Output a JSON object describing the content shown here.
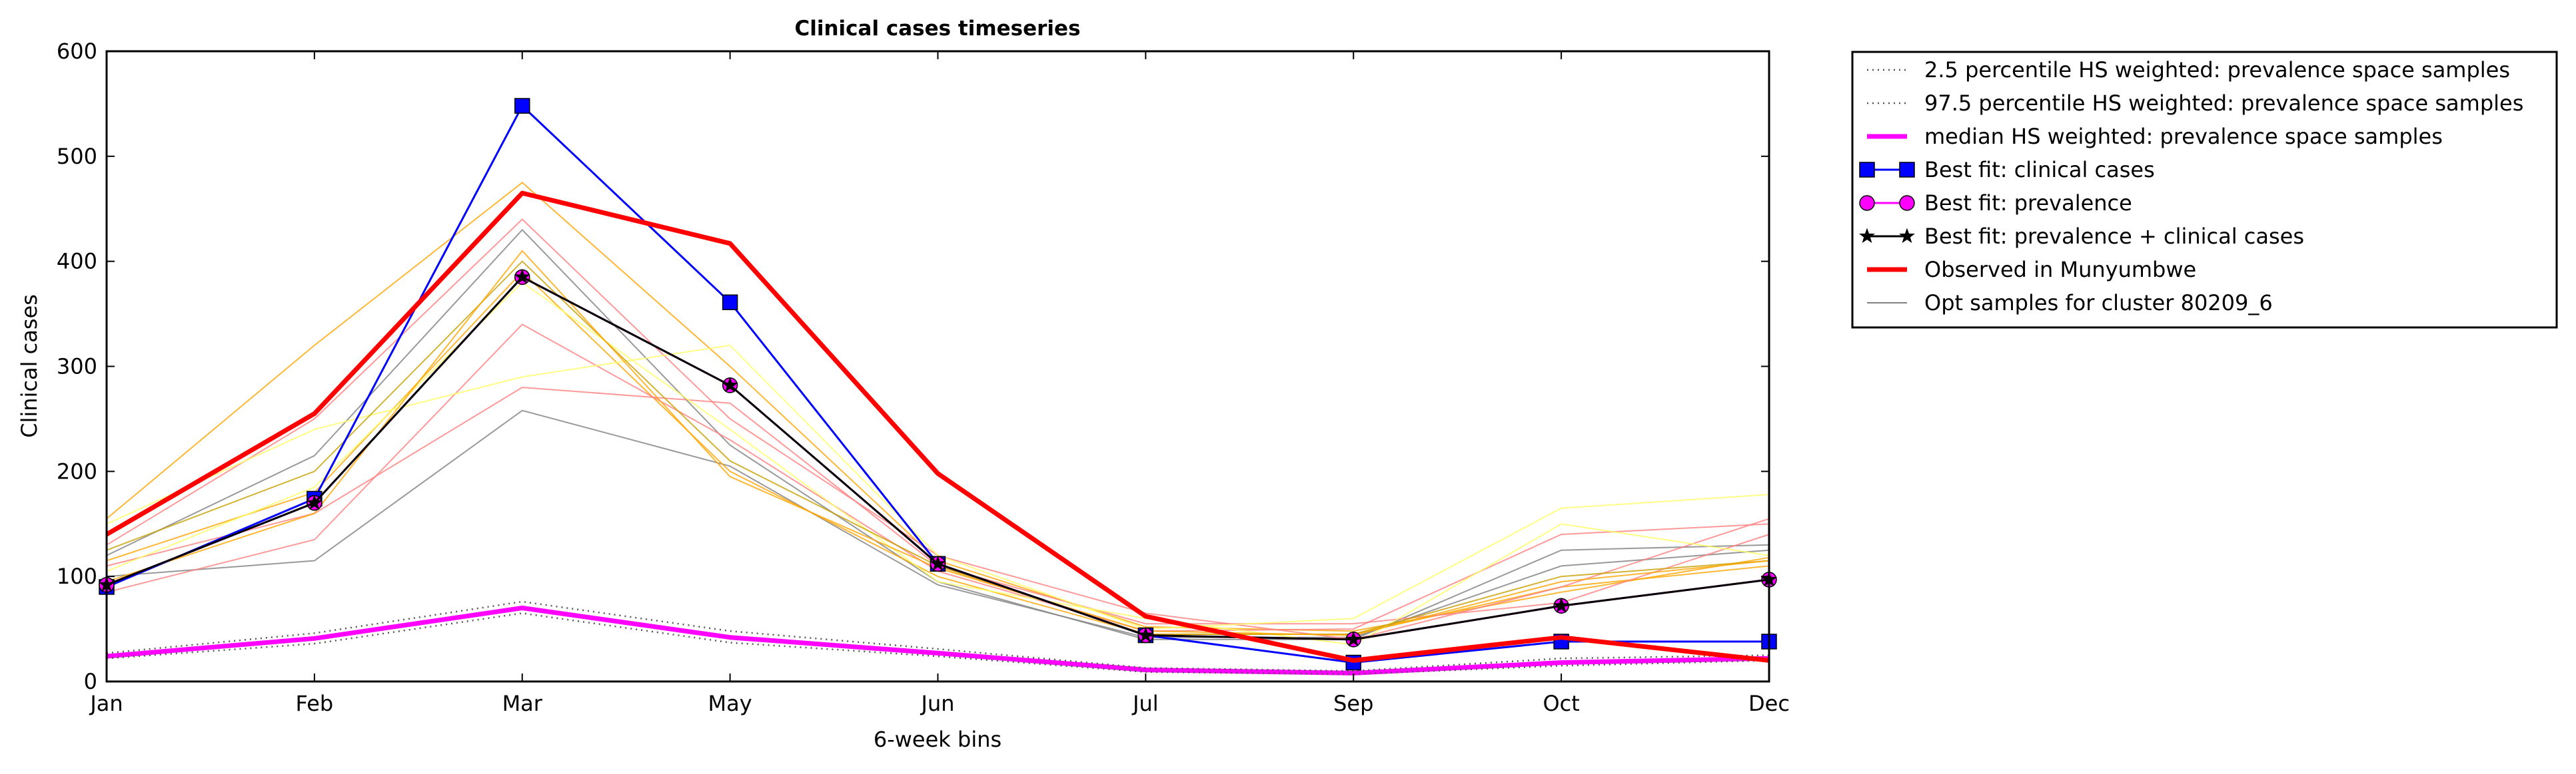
{
  "chart_data": {
    "type": "line",
    "title": "Clinical cases timeseries",
    "xlabel": "6-week bins",
    "ylabel": "Clinical cases",
    "categories": [
      "Jan",
      "Feb",
      "Mar",
      "May",
      "Jun",
      "Jul",
      "Sep",
      "Oct",
      "Dec"
    ],
    "yticks": [
      0,
      100,
      200,
      300,
      400,
      500,
      600
    ],
    "ylim": [
      0,
      600
    ],
    "grid": false,
    "legend_position": "outside-top-right",
    "series": [
      {
        "name": "2.5 percentile HS weighted: prevalence space samples",
        "style": "dotted",
        "color": "#555555",
        "values": [
          22,
          36,
          65,
          37,
          24,
          9,
          7,
          15,
          20
        ]
      },
      {
        "name": "97.5 percentile HS weighted: prevalence space samples",
        "style": "dotted",
        "color": "#555555",
        "values": [
          27,
          46,
          76,
          48,
          31,
          13,
          10,
          22,
          25
        ]
      },
      {
        "name": "median HS weighted: prevalence space samples",
        "style": "solid-thick",
        "color": "#ff00ff",
        "values": [
          24,
          41,
          70,
          42,
          27,
          11,
          8,
          18,
          22
        ]
      },
      {
        "name": "Best fit: clinical cases",
        "style": "square-marker",
        "color": "#0000ff",
        "values": [
          90,
          174,
          548,
          361,
          112,
          44,
          18,
          38,
          38
        ]
      },
      {
        "name": "Best fit: prevalence",
        "style": "circle-marker",
        "color": "#ff00ff",
        "values": [
          92,
          170,
          385,
          282,
          112,
          44,
          40,
          72,
          97
        ]
      },
      {
        "name": "Best fit: prevalence + clinical cases",
        "style": "star-marker",
        "color": "#000000",
        "values": [
          92,
          170,
          385,
          282,
          112,
          44,
          40,
          72,
          97
        ]
      },
      {
        "name": "Observed in Munyumbwe",
        "style": "solid-thick",
        "color": "#ff0000",
        "values": [
          140,
          255,
          465,
          417,
          198,
          62,
          20,
          42,
          20
        ]
      },
      {
        "name": "Opt samples for cluster 80209_6",
        "style": "thin",
        "color": "#808080",
        "values": [
          100,
          115,
          258,
          205,
          92,
          42,
          42,
          110,
          125
        ]
      }
    ],
    "opt_samples": [
      {
        "color": "#808080",
        "values": [
          120,
          215,
          430,
          225,
          95,
          40,
          40,
          125,
          130
        ]
      },
      {
        "color": "#808080",
        "values": [
          100,
          115,
          258,
          205,
          92,
          42,
          42,
          110,
          125
        ]
      },
      {
        "color": "#ffa500",
        "values": [
          155,
          320,
          475,
          300,
          115,
          52,
          48,
          85,
          118
        ]
      },
      {
        "color": "#ffa500",
        "values": [
          115,
          180,
          390,
          200,
          100,
          45,
          45,
          90,
          110
        ]
      },
      {
        "color": "#ff8080",
        "values": [
          85,
          135,
          340,
          230,
          105,
          48,
          50,
          140,
          150
        ]
      },
      {
        "color": "#ff8080",
        "values": [
          110,
          160,
          280,
          265,
          110,
          55,
          55,
          75,
          140
        ]
      },
      {
        "color": "#ff8080",
        "values": [
          130,
          250,
          440,
          250,
          120,
          65,
          40,
          90,
          155
        ]
      },
      {
        "color": "#ffff66",
        "values": [
          150,
          240,
          290,
          320,
          120,
          50,
          60,
          165,
          178
        ]
      },
      {
        "color": "#ffff66",
        "values": [
          105,
          185,
          380,
          240,
          95,
          60,
          35,
          150,
          120
        ]
      },
      {
        "color": "#c8a000",
        "values": [
          125,
          200,
          400,
          210,
          110,
          45,
          45,
          100,
          115
        ]
      },
      {
        "color": "#ffa500",
        "values": [
          95,
          160,
          410,
          195,
          108,
          48,
          44,
          95,
          115
        ]
      }
    ]
  }
}
